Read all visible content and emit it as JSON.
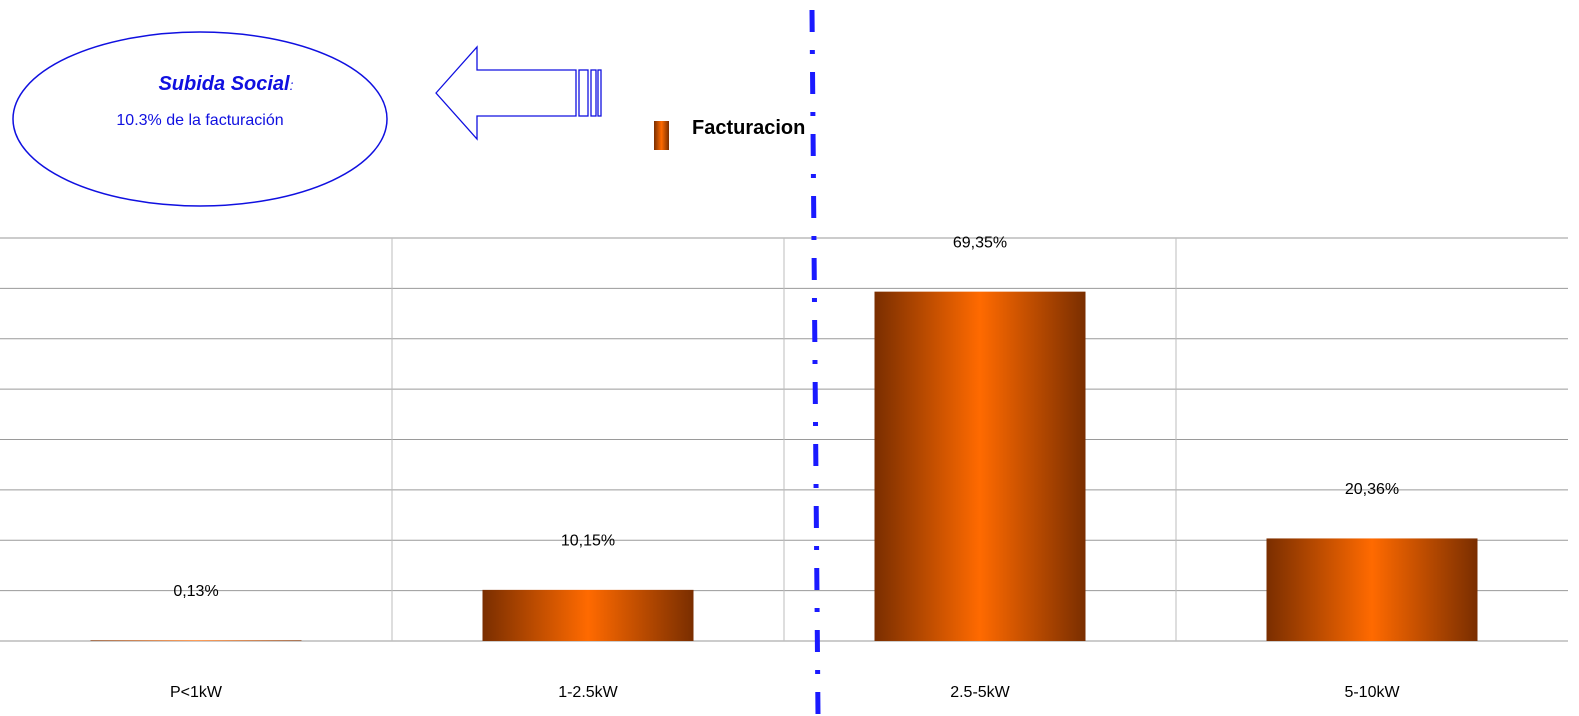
{
  "chart_data": {
    "type": "bar",
    "categories": [
      "P<1kW",
      "1-2.5kW",
      "2.5-5kW",
      "5-10kW"
    ],
    "series": [
      {
        "name": "Facturacion",
        "values": [
          0.13,
          10.15,
          69.35,
          20.36
        ]
      }
    ],
    "data_labels": [
      "0,13%",
      "10,15%",
      "69,35%",
      "20,36%"
    ],
    "ylim": [
      0,
      80
    ],
    "grid": true,
    "legend": "top-center",
    "title": "",
    "xlabel": "",
    "ylabel": ""
  },
  "legend": {
    "label": "Facturacion"
  },
  "callout": {
    "title": "Subida Social",
    "title_suffix": ":",
    "text": "10.3% de la facturación"
  },
  "colors": {
    "bar_edge": "#7a2e00",
    "bar_center": "#ff6a00",
    "divider": "#1a1aff",
    "callout": "#1010e0",
    "grid": "#9a9a9a"
  }
}
